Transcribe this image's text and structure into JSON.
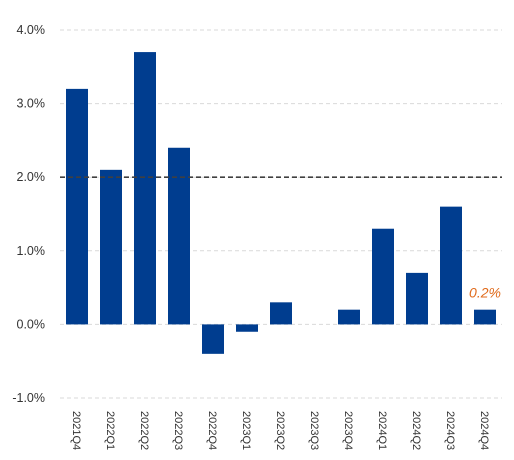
{
  "chart_data": {
    "type": "bar",
    "categories": [
      "2021Q4",
      "2022Q1",
      "2022Q2",
      "2022Q3",
      "2022Q4",
      "2023Q1",
      "2023Q2",
      "2023Q3",
      "2023Q4",
      "2024Q1",
      "2024Q2",
      "2024Q3",
      "2024Q4"
    ],
    "values": [
      3.2,
      2.1,
      3.7,
      2.4,
      -0.4,
      -0.1,
      0.3,
      0.0,
      0.2,
      1.3,
      0.7,
      1.6,
      0.2
    ],
    "title": "",
    "xlabel": "",
    "ylabel": "",
    "ylim": [
      -1.0,
      4.0
    ],
    "yticks": [
      -1.0,
      0.0,
      1.0,
      2.0,
      3.0,
      4.0
    ],
    "ytick_labels": [
      "-1.0%",
      "0.0%",
      "1.0%",
      "2.0%",
      "3.0%",
      "4.0%"
    ],
    "reference_line": 2.0,
    "grid": true,
    "bar_color": "#003d8f",
    "reference_line_color": "#404040",
    "annotation": {
      "category": "2024Q4",
      "text": "0.2%",
      "color": "#e06a1b"
    }
  }
}
